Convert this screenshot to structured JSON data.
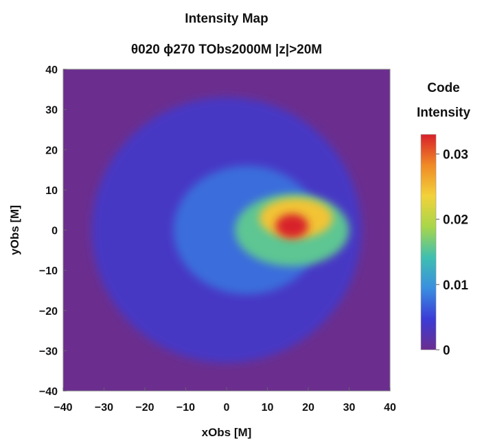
{
  "chart_data": {
    "type": "heatmap",
    "title": "Intensity Map",
    "subtitle": "θ020 ϕ270 TObs2000M |z|>20M",
    "xlabel": "xObs [M]",
    "ylabel": "yObs [M]",
    "xlim": [
      -40,
      40
    ],
    "ylim": [
      -40,
      40
    ],
    "xticks": [
      "−40",
      "−30",
      "−20",
      "−10",
      "0",
      "10",
      "20",
      "30",
      "40"
    ],
    "yticks": [
      "40",
      "30",
      "20",
      "10",
      "0",
      "−10",
      "−20",
      "−30",
      "−40"
    ],
    "colorbar": {
      "title_line1": "Code",
      "title_line2": "Intensity",
      "range": [
        0,
        0.033
      ],
      "ticks": [
        "0.03",
        "0.02",
        "0.01",
        "0"
      ],
      "tick_values": [
        0.03,
        0.02,
        0.01,
        0
      ],
      "colors": [
        "#6b2e8f",
        "#3b3bd6",
        "#3a8fe0",
        "#3fbfb0",
        "#a8d64a",
        "#f2d23a",
        "#f08a26",
        "#d8202a"
      ]
    },
    "peak": {
      "x": 16,
      "y": 1,
      "value": 0.033
    },
    "features": [
      {
        "kind": "hotspot",
        "x": 16,
        "y": 1,
        "sx": 4,
        "sy": 3,
        "value": 0.013
      },
      {
        "kind": "bright-region",
        "x": 17,
        "y": 3,
        "sx": 9,
        "sy": 5,
        "value": 0.009
      },
      {
        "kind": "green-halo",
        "x": 16,
        "y": 0,
        "sx": 14,
        "sy": 9,
        "value": 0.008
      },
      {
        "kind": "inner-disk",
        "x": 5,
        "y": 0,
        "sx": 18,
        "sy": 16,
        "value": 0.004
      },
      {
        "kind": "outer-disk",
        "x": 0,
        "y": 0,
        "sx": 33,
        "sy": 33,
        "value": 0.0035
      }
    ]
  }
}
